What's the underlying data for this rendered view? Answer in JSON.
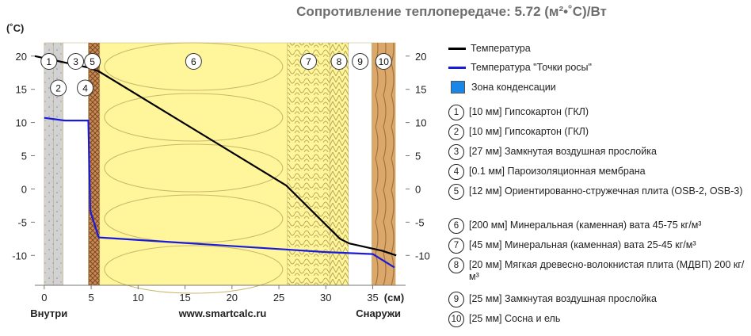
{
  "header": {
    "title": "Сопротивление теплопередаче: 5.72 (м²•˚C)/Вт"
  },
  "chart_data": {
    "type": "line",
    "title": "Сопротивление теплопередаче: 5.72 (м²•˚C)/Вт",
    "ylabel": "(˚C)",
    "xlabel": "(см)",
    "xlim": [
      -1,
      38.5
    ],
    "ylim": [
      -14.5,
      22
    ],
    "x_ticks": [
      0,
      5,
      10,
      15,
      20,
      25,
      30,
      35
    ],
    "y_ticks": [
      20,
      15,
      10,
      5,
      0,
      -5,
      -10
    ],
    "inside_label": "Внутри",
    "outside_label": "Снаружи",
    "watermark": "www.smartcalc.ru",
    "series": [
      {
        "name": "Температура",
        "color": "#000000",
        "points": [
          [
            -1,
            20
          ],
          [
            4.6,
            18.3
          ],
          [
            5.8,
            17.7
          ],
          [
            25.8,
            0.5
          ],
          [
            31.5,
            -7.5
          ],
          [
            32.5,
            -8.2
          ],
          [
            36,
            -9.3
          ],
          [
            37.5,
            -10
          ]
        ]
      },
      {
        "name": "Температура \"Точки росы\"",
        "color": "#1a1adc",
        "points": [
          [
            0,
            10.7
          ],
          [
            2.2,
            10.3
          ],
          [
            4.7,
            10.3
          ],
          [
            4.9,
            -3.3
          ],
          [
            5.8,
            -7.3
          ],
          [
            30,
            -9.5
          ],
          [
            35,
            -9.8
          ],
          [
            37.3,
            -11.8
          ]
        ]
      }
    ],
    "condensation_zone": {
      "name": "Зона конденсации",
      "color": "#1a86e8"
    },
    "layers": [
      {
        "id": "1",
        "from": 0,
        "to": 1,
        "fill": "#cfcfcf",
        "desc": "[10 мм] Гипсокартон (ГКЛ)"
      },
      {
        "id": "2",
        "from": 1,
        "to": 2,
        "fill": "#cfcfcf",
        "desc": "[10 мм] Гипсокартон (ГКЛ)"
      },
      {
        "id": "3",
        "from": 2,
        "to": 4.7,
        "fill": "#ffffff",
        "desc": "[27 мм] Замкнутая воздушная прослойка"
      },
      {
        "id": "4",
        "from": 4.7,
        "to": 4.71,
        "fill": "#9a9a9a",
        "desc": "[0.1 мм] Пароизоляционная мембрана"
      },
      {
        "id": "5",
        "from": 4.71,
        "to": 5.91,
        "fill": "#c98a55",
        "desc": "[12 мм] Ориентированно-стружечная плита (OSB-2, OSB-3)"
      },
      {
        "id": "6",
        "from": 5.91,
        "to": 25.91,
        "fill": "#fff59a",
        "desc": "[200 мм] Минеральная (каменная) вата 45-75 кг/м³"
      },
      {
        "id": "7",
        "from": 25.91,
        "to": 30.41,
        "fill": "#fff59a",
        "desc": "[45 мм] Минеральная (каменная) вата 25-45 кг/м³"
      },
      {
        "id": "8",
        "from": 30.41,
        "to": 32.41,
        "fill": "#fff59a",
        "desc": "[20 мм] Мягкая древесно-волокнистая плита (МДВП) 200 кг/м³"
      },
      {
        "id": "9",
        "from": 32.41,
        "to": 34.91,
        "fill": "#ffffff",
        "desc": "[25 мм] Замкнутая воздушная прослойка"
      },
      {
        "id": "10",
        "from": 34.91,
        "to": 37.41,
        "fill": "#d9a86a",
        "desc": "[25 мм] Сосна и ель"
      }
    ]
  }
}
